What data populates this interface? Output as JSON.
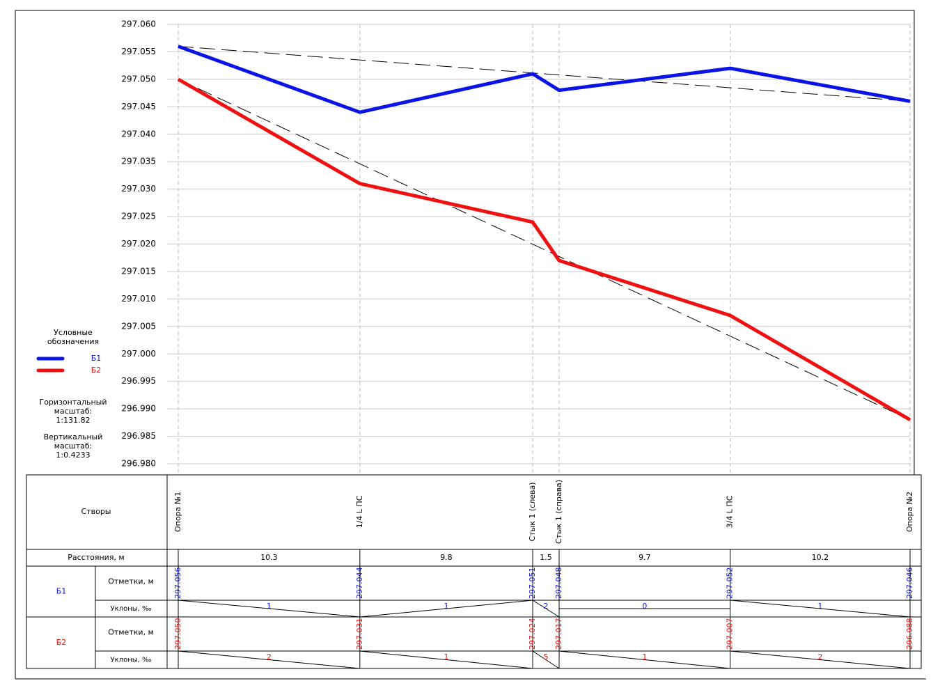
{
  "chart_data": {
    "type": "line",
    "categories": [
      "Опора №1",
      "1/4 L ПС",
      "Стык 1 (слева)",
      "Стык 1 (справа)",
      "3/4 L ПС",
      "Опора №2"
    ],
    "distances": [
      10.3,
      9.8,
      1.5,
      9.7,
      10.2
    ],
    "ylim": [
      296.98,
      297.06
    ],
    "yticks": [
      {
        "value": 297.06,
        "label": "297.060"
      },
      297.055,
      {
        "value": 297.05,
        "label": "297.050"
      },
      297.045,
      {
        "value": 297.04,
        "label": "297.040"
      },
      297.035,
      {
        "value": 297.03,
        "label": "297.030"
      },
      297.025,
      {
        "value": 297.02,
        "label": "297.020"
      },
      297.015,
      {
        "value": 297.01,
        "label": "297.010"
      },
      297.005,
      {
        "value": 297,
        "label": "297.000"
      },
      296.995,
      {
        "value": 296.99,
        "label": "296.990"
      },
      296.985,
      {
        "value": 296.98,
        "label": "296.980"
      }
    ],
    "grid": true,
    "legend": {
      "title": "Условные обозначения",
      "position": "left"
    },
    "horizontal_scale": {
      "label": "Горизонтальный масштаб:",
      "value": "1:131.82"
    },
    "vertical_scale": {
      "label": "Вертикальный масштаб:",
      "value": "1:0.4233"
    },
    "series": [
      {
        "name": "Б1",
        "color": "#0a14e6",
        "values": [
          297.056,
          297.044,
          297.051,
          297.048,
          297.052,
          297.046
        ],
        "value_labels": [
          "297.056",
          "297.044",
          "297.051",
          "297.048",
          "297.052",
          "297.046"
        ],
        "slopes": [
          1,
          1,
          2,
          0,
          1
        ]
      },
      {
        "name": "Б2",
        "color": "#f01010",
        "values": [
          297.05,
          297.031,
          297.024,
          297.017,
          297.007,
          296.988
        ],
        "value_labels": [
          "297.050",
          "297.031",
          "297.024",
          "297.017",
          "297.007",
          "296.988"
        ],
        "slopes": [
          2,
          1,
          5,
          1,
          2
        ]
      }
    ]
  },
  "table": {
    "stations_label": "Створы",
    "distances_label": "Расстояния, м",
    "elevations_label": "Отметки, м",
    "slopes_label": "Уклоны, ‰"
  }
}
